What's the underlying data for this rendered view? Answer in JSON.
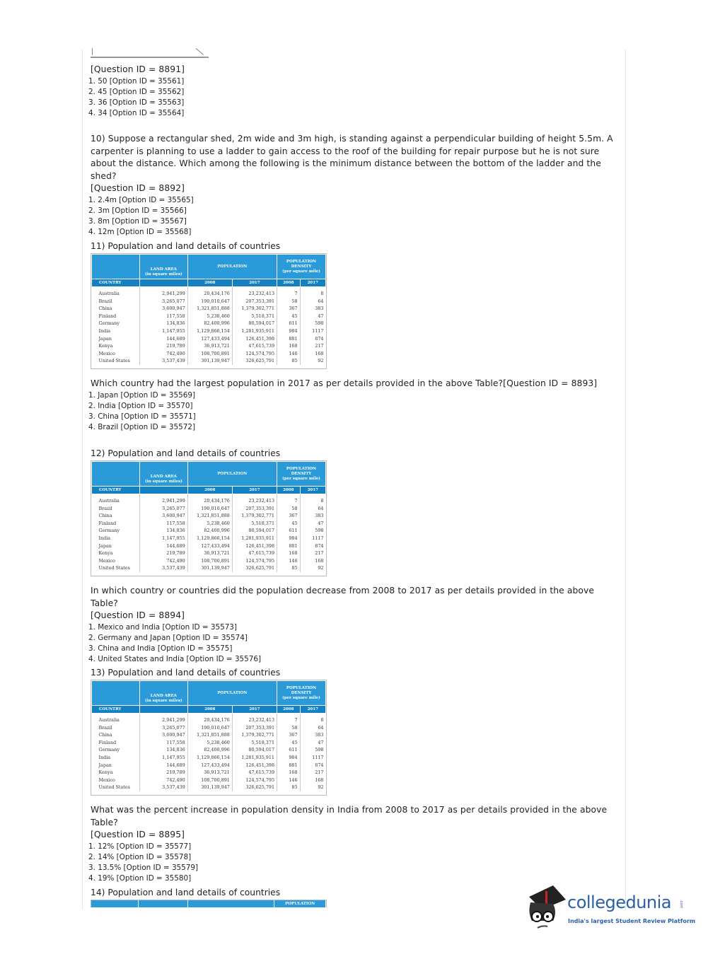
{
  "q9": {
    "qid": "[Question ID = 8891]",
    "options": [
      "1.  50 [Option ID = 35561]",
      "2.  45 [Option ID = 35562]",
      "3.  36 [Option ID = 35563]",
      "4.  34 [Option ID = 35564]"
    ]
  },
  "q10": {
    "text": "10) Suppose a rectangular shed, 2m wide and 3m high, is standing against a perpendicular building of height 5.5m. A carpenter is planning to use a ladder to gain access to the roof of the building for repair purpose but he is not sure about the distance. Which among the following is the minimum distance between the bottom of the ladder and the shed?",
    "qid": "[Question ID = 8892]",
    "options": [
      "1.  2.4m [Option ID = 35565]",
      "2.  3m [Option ID = 35566]",
      "3.  8m [Option ID = 35567]",
      "4.  12m [Option ID = 35568]"
    ]
  },
  "q11": {
    "title": "11) Population and land details of countries",
    "text": "Which country had the largest population in 2017 as per details provided in the above Table?[Question ID = 8893]",
    "options": [
      "1.  Japan [Option ID = 35569]",
      "2.  India [Option ID = 35570]",
      "3.  China [Option ID = 35571]",
      "4.  Brazil [Option ID = 35572]"
    ]
  },
  "q12": {
    "title": "12) Population and land details of countries",
    "text": "In which country or countries did the population decrease from 2008 to 2017 as per details provided in the above Table?",
    "qid": "[Question ID = 8894]",
    "options": [
      "1.  Mexico and India [Option ID = 35573]",
      "2.  Germany and Japan [Option ID = 35574]",
      "3.  China and India [Option ID = 35575]",
      "4.  United States and India [Option ID = 35576]"
    ]
  },
  "q13": {
    "title": "13) Population and land details of countries",
    "text": "What was the percent increase in population density in India from 2008 to 2017 as per details provided in the above Table?",
    "qid": "[Question ID = 8895]",
    "options": [
      "1.  12% [Option ID = 35577]",
      "2.  14% [Option ID = 35578]",
      "3.  13.5% [Option ID = 35579]",
      "4.  19% [Option ID = 35580]"
    ]
  },
  "q14": {
    "title": "14) Population and land details of countries"
  },
  "table": {
    "headers": {
      "country": "COUNTRY",
      "land_area": "LAND AREA",
      "land_area_unit": "(in square miles)",
      "population": "POPULATION",
      "density": "POPULATION DENSITY",
      "density_unit": "(per square mile)",
      "y2008": "2008",
      "y2017": "2017"
    },
    "rows": [
      [
        "Australia",
        "2,941,299",
        "20,434,176",
        "23,232,413",
        "7",
        "8"
      ],
      [
        "Brazil",
        "3,265,077",
        "190,010,647",
        "207,353,391",
        "58",
        "64"
      ],
      [
        "China",
        "3,600,947",
        "1,321,851,888",
        "1,379,302,771",
        "367",
        "383"
      ],
      [
        "Finland",
        "117,558",
        "5,238,460",
        "5,518,371",
        "45",
        "47"
      ],
      [
        "Germany",
        "134,836",
        "82,400,996",
        "80,594,017",
        "611",
        "598"
      ],
      [
        "India",
        "1,147,955",
        "1,129,866,154",
        "1,281,935,911",
        "984",
        "1117"
      ],
      [
        "Japan",
        "144,689",
        "127,433,494",
        "126,451,398",
        "881",
        "874"
      ],
      [
        "Kenya",
        "219,789",
        "36,913,721",
        "47,615,739",
        "168",
        "217"
      ],
      [
        "Mexico",
        "742,490",
        "108,700,891",
        "124,574,795",
        "146",
        "168"
      ],
      [
        "United States",
        "3,537,439",
        "301,139,947",
        "326,625,791",
        "85",
        "92"
      ]
    ]
  },
  "logo": {
    "name": "collegedunia",
    "suffix": ".com",
    "tagline": "India's largest Student Review Platform",
    "color": "#2b5fa6"
  }
}
